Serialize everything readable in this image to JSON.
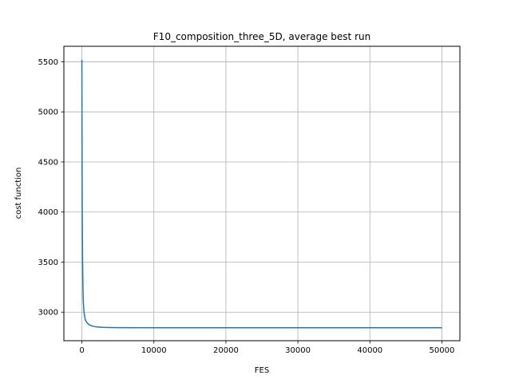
{
  "chart_data": {
    "type": "line",
    "title": "F10_composition_three_5D, average best run",
    "xlabel": "FES",
    "ylabel": "cost function",
    "xlim": [
      -2500,
      52500
    ],
    "ylim": [
      2715,
      5655
    ],
    "xticks": [
      0,
      10000,
      20000,
      30000,
      40000,
      50000
    ],
    "yticks": [
      3000,
      3500,
      4000,
      4500,
      5000,
      5500
    ],
    "grid": true,
    "series": [
      {
        "color": "#1f77b4",
        "x": [
          0,
          20,
          50,
          100,
          150,
          200,
          300,
          400,
          500,
          700,
          1000,
          1500,
          2000,
          3000,
          4000,
          5000,
          10000,
          20000,
          30000,
          40000,
          50000
        ],
        "y": [
          5520,
          4800,
          4000,
          3500,
          3250,
          3100,
          3000,
          2950,
          2920,
          2895,
          2875,
          2860,
          2853,
          2848,
          2846,
          2845,
          2844,
          2844,
          2844,
          2844,
          2844
        ]
      }
    ]
  }
}
